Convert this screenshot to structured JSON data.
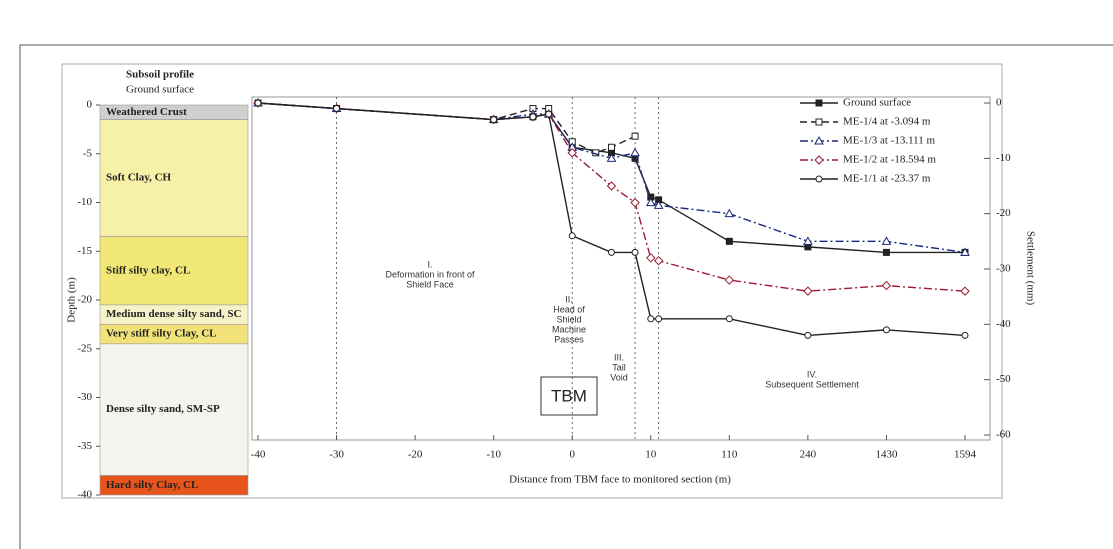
{
  "chart_data": {
    "type": "line",
    "profile_title": "Subsoil profile",
    "profile_subtitle": "Ground surface",
    "depth_label": "Depth (m)",
    "depth_lim": [
      -40,
      0
    ],
    "depth_ticks": [
      0,
      -5,
      -10,
      -15,
      -20,
      -25,
      -30,
      -35,
      -40
    ],
    "soil_layers": [
      {
        "name": "Weathered Crust",
        "top": 0,
        "bottom": -1.5,
        "color": "#cfcfcf"
      },
      {
        "name": "Soft Clay, CH",
        "top": -1.5,
        "bottom": -13.5,
        "color": "#f6f1a6"
      },
      {
        "name": "Stiff silty clay, CL",
        "top": -13.5,
        "bottom": -20.5,
        "color": "#f1e777"
      },
      {
        "name": "Medium dense silty sand, SC",
        "top": -20.5,
        "bottom": -22.5,
        "color": "#f7f3c8"
      },
      {
        "name": "Very stiff silty Clay, CL",
        "top": -22.5,
        "bottom": -24.5,
        "color": "#f2e27a"
      },
      {
        "name": "Dense silty sand, SM-SP",
        "top": -24.5,
        "bottom": -38,
        "color": "#f5f3ee"
      },
      {
        "name": "Hard silty Clay, CL",
        "top": -38,
        "bottom": -40,
        "color": "#e8551c"
      }
    ],
    "x_label": "Distance from TBM face to monitored section (m)",
    "y2_label": "Settlement (mm)",
    "xticks": [
      -40,
      -30,
      -20,
      -10,
      0,
      10,
      110,
      240,
      1430,
      1594
    ],
    "xlim": [
      -40,
      1594
    ],
    "y2lim": [
      -60,
      0
    ],
    "y2ticks": [
      0,
      -10,
      -20,
      -30,
      -40,
      -50,
      -60
    ],
    "phase_lines": [
      -30,
      0,
      8,
      20
    ],
    "phases": [
      [
        "I.",
        "Deformation in front of",
        "Shield Face"
      ],
      [
        "II.",
        "Head of",
        "Shield",
        "Machine",
        "Passes"
      ],
      [
        "III.",
        "Tail",
        "Void"
      ],
      [
        "IV.",
        "Subsequent Settlement"
      ]
    ],
    "tbm_label": "TBM",
    "series": [
      {
        "name": "Ground surface",
        "color": "#222222",
        "dash": "solid",
        "marker": "square-filled",
        "axis": "y2",
        "x": [
          -40,
          -30,
          -10,
          -5,
          -3,
          0,
          5,
          8,
          10,
          20,
          110,
          240,
          1430,
          1594
        ],
        "values": [
          0,
          -1,
          -3,
          -2.5,
          -2,
          -8,
          -9,
          -10,
          -17,
          -17.5,
          -25,
          -26,
          -27,
          -27
        ]
      },
      {
        "name": "ME-1/4 at -3.094 m",
        "color": "#222222",
        "dash": "dashed",
        "marker": "square",
        "axis": "y2",
        "x": [
          -40,
          -30,
          -10,
          -5,
          -3,
          0,
          3,
          5,
          8
        ],
        "values": [
          0,
          -1,
          -3,
          -1,
          -1,
          -7,
          -9,
          -8,
          -6
        ]
      },
      {
        "name": "ME-1/3 at -13.111 m",
        "color": "#1a2a7a",
        "dash": "dashdot",
        "marker": "triangle",
        "axis": "y2",
        "x": [
          -40,
          -30,
          -10,
          -5,
          -3,
          0,
          5,
          8,
          10,
          20,
          110,
          240,
          1430,
          1594
        ],
        "values": [
          0,
          -1,
          -3,
          -2,
          -2,
          -8,
          -10,
          -9,
          -18,
          -18.5,
          -20,
          -25,
          -25,
          -27
        ]
      },
      {
        "name": "ME-1/2 at -18.594 m",
        "color": "#9b1b30",
        "dash": "dashdot",
        "marker": "diamond",
        "axis": "y2",
        "x": [
          -40,
          -30,
          -10,
          -5,
          -3,
          0,
          5,
          8,
          10,
          20,
          110,
          240,
          1430,
          1594
        ],
        "values": [
          0,
          -1,
          -3,
          -2.5,
          -2,
          -9,
          -15,
          -18,
          -28,
          -28.5,
          -32,
          -34,
          -33,
          -34
        ]
      },
      {
        "name": "ME-1/1 at -23.37 m",
        "color": "#222222",
        "dash": "solid",
        "marker": "circle",
        "axis": "y2",
        "x": [
          -40,
          -30,
          -10,
          -5,
          -3,
          0,
          5,
          8,
          10,
          20,
          110,
          240,
          1430,
          1594
        ],
        "values": [
          0,
          -1,
          -3,
          -2.5,
          -2,
          -24,
          -27,
          -27,
          -39,
          -39,
          -39,
          -42,
          -41,
          -42
        ]
      }
    ]
  }
}
